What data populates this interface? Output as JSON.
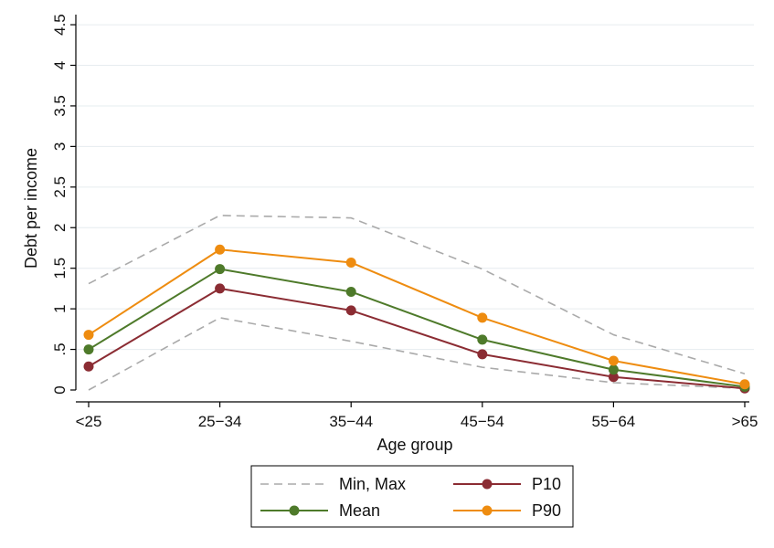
{
  "chart_data": {
    "type": "line",
    "title": "",
    "xlabel": "Age group",
    "ylabel": "Debt per income",
    "categories": [
      "<25",
      "25−34",
      "35−44",
      "45−54",
      "55−64",
      ">65"
    ],
    "ylim": [
      0,
      4.5
    ],
    "yticks": [
      "0",
      ".5",
      "1",
      "1.5",
      "2",
      "2.5",
      "3",
      "3.5",
      "4",
      "4.5"
    ],
    "ytick_values": [
      0,
      0.5,
      1,
      1.5,
      2,
      2.5,
      3,
      3.5,
      4,
      4.5
    ],
    "grid": true,
    "legend_position": "bottom",
    "series": [
      {
        "name": "Max",
        "legend": "Min, Max",
        "style": "dashed",
        "color": "#aaaaaa",
        "values": [
          1.31,
          2.15,
          2.12,
          1.49,
          0.68,
          0.2
        ]
      },
      {
        "name": "Min",
        "legend": "Min, Max",
        "style": "dashed",
        "color": "#aaaaaa",
        "values": [
          0.0,
          0.89,
          0.6,
          0.28,
          0.09,
          0.02
        ]
      },
      {
        "name": "P10",
        "legend": "P10",
        "style": "solid-markers",
        "color": "#8b2c33",
        "values": [
          0.29,
          1.25,
          0.98,
          0.44,
          0.16,
          0.02
        ]
      },
      {
        "name": "Mean",
        "legend": "Mean",
        "style": "solid-markers",
        "color": "#4e7a2a",
        "values": [
          0.5,
          1.49,
          1.21,
          0.62,
          0.25,
          0.04
        ]
      },
      {
        "name": "P90",
        "legend": "P90",
        "style": "solid-markers",
        "color": "#ee8c10",
        "values": [
          0.68,
          1.73,
          1.57,
          0.89,
          0.36,
          0.07
        ]
      }
    ],
    "legend_items": [
      {
        "label": "Min, Max",
        "style": "dashed",
        "color": "#aaaaaa"
      },
      {
        "label": "P10",
        "style": "solid-markers",
        "color": "#8b2c33"
      },
      {
        "label": "Mean",
        "style": "solid-markers",
        "color": "#4e7a2a"
      },
      {
        "label": "P90",
        "style": "solid-markers",
        "color": "#ee8c10"
      }
    ]
  }
}
